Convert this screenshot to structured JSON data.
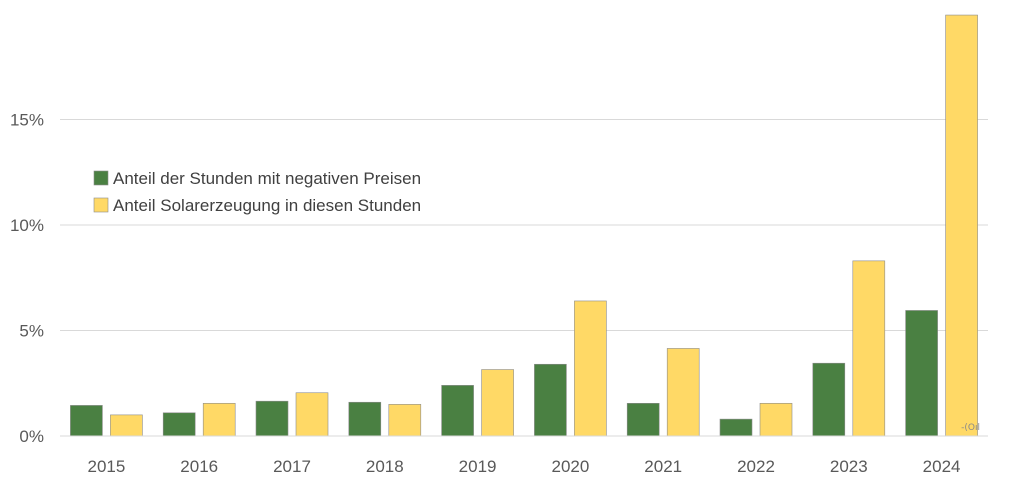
{
  "chart_data": {
    "type": "bar",
    "categories": [
      "2015",
      "2016",
      "2017",
      "2018",
      "2019",
      "2020",
      "2021",
      "2022",
      "2023",
      "2024"
    ],
    "series": [
      {
        "name": "Anteil der Stunden mit negativen Preisen",
        "color": "#4a8042",
        "values": [
          1.45,
          1.1,
          1.65,
          1.6,
          2.4,
          3.4,
          1.55,
          0.8,
          3.45,
          5.95
        ]
      },
      {
        "name": "Anteil Solarerzeugung in diesen Stunden",
        "color": "#ffd966",
        "values": [
          1.0,
          1.55,
          2.05,
          1.5,
          3.15,
          6.4,
          4.15,
          1.55,
          8.3,
          19.95
        ]
      }
    ],
    "y_ticks": [
      "0%",
      "5%",
      "10%",
      "15%"
    ],
    "y_tick_values": [
      0,
      5,
      10,
      15
    ],
    "ylim": [
      0,
      20
    ],
    "grid": true,
    "legend_position": "upper-left",
    "title": "",
    "xlabel": "",
    "ylabel": ""
  },
  "watermark": "-(Oıl"
}
